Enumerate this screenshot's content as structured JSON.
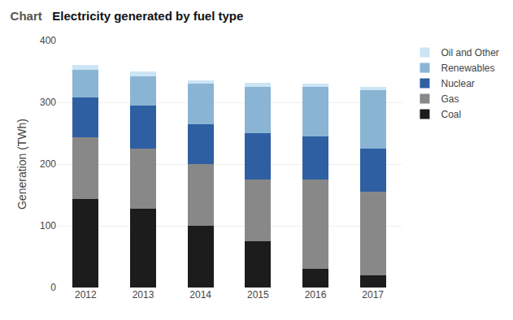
{
  "chart_data": {
    "type": "bar",
    "stacked": true,
    "title": "Electricity generated by fuel type",
    "annotations": [
      "Chart"
    ],
    "ylabel": "Generation (TWh)",
    "categories": [
      "2012",
      "2013",
      "2014",
      "2015",
      "2016",
      "2017"
    ],
    "series": [
      {
        "name": "Coal",
        "color": "#1c1c1c",
        "values": [
          143,
          128,
          100,
          75,
          30,
          20
        ]
      },
      {
        "name": "Gas",
        "color": "#888888",
        "values": [
          100,
          97,
          100,
          100,
          145,
          135
        ]
      },
      {
        "name": "Nuclear",
        "color": "#2e5fa3",
        "values": [
          65,
          70,
          65,
          75,
          70,
          70
        ]
      },
      {
        "name": "Renewables",
        "color": "#8ab4d4",
        "values": [
          45,
          47,
          65,
          75,
          80,
          95
        ]
      },
      {
        "name": "Oil and Other",
        "color": "#cce5f5",
        "values": [
          7,
          8,
          5,
          7,
          5,
          5
        ]
      }
    ],
    "ylim": [
      0,
      400
    ],
    "yticks": [
      0,
      100,
      200,
      300,
      400
    ],
    "grid": true,
    "legend": "upper right"
  }
}
